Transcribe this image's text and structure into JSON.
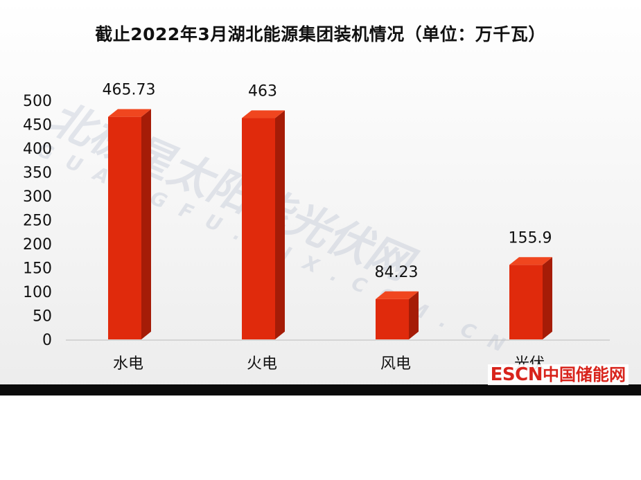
{
  "chart_data": {
    "type": "bar",
    "title": "截止2022年3月湖北能源集团装机情况（单位：万千瓦）",
    "categories": [
      "水电",
      "火电",
      "风电",
      "光伏"
    ],
    "values": [
      465.73,
      463,
      84.23,
      155.9
    ],
    "data_labels": [
      "465.73",
      "463",
      "84.23",
      "155.9"
    ],
    "ylim": [
      0,
      500
    ],
    "yticks": [
      "0",
      "50",
      "100",
      "150",
      "200",
      "250",
      "300",
      "350",
      "400",
      "450",
      "500"
    ],
    "grid": false,
    "legend": "none",
    "bar_color": "#e02a0c",
    "bar_side_color": "#a51c07",
    "bar_top_color": "#f0461f"
  },
  "watermark": {
    "line1": "北极星太阳能光伏网",
    "line2": "GUANGFU.BJX.COM.CN"
  },
  "logo": {
    "en": "ESCN",
    "cn": "中国储能网"
  }
}
